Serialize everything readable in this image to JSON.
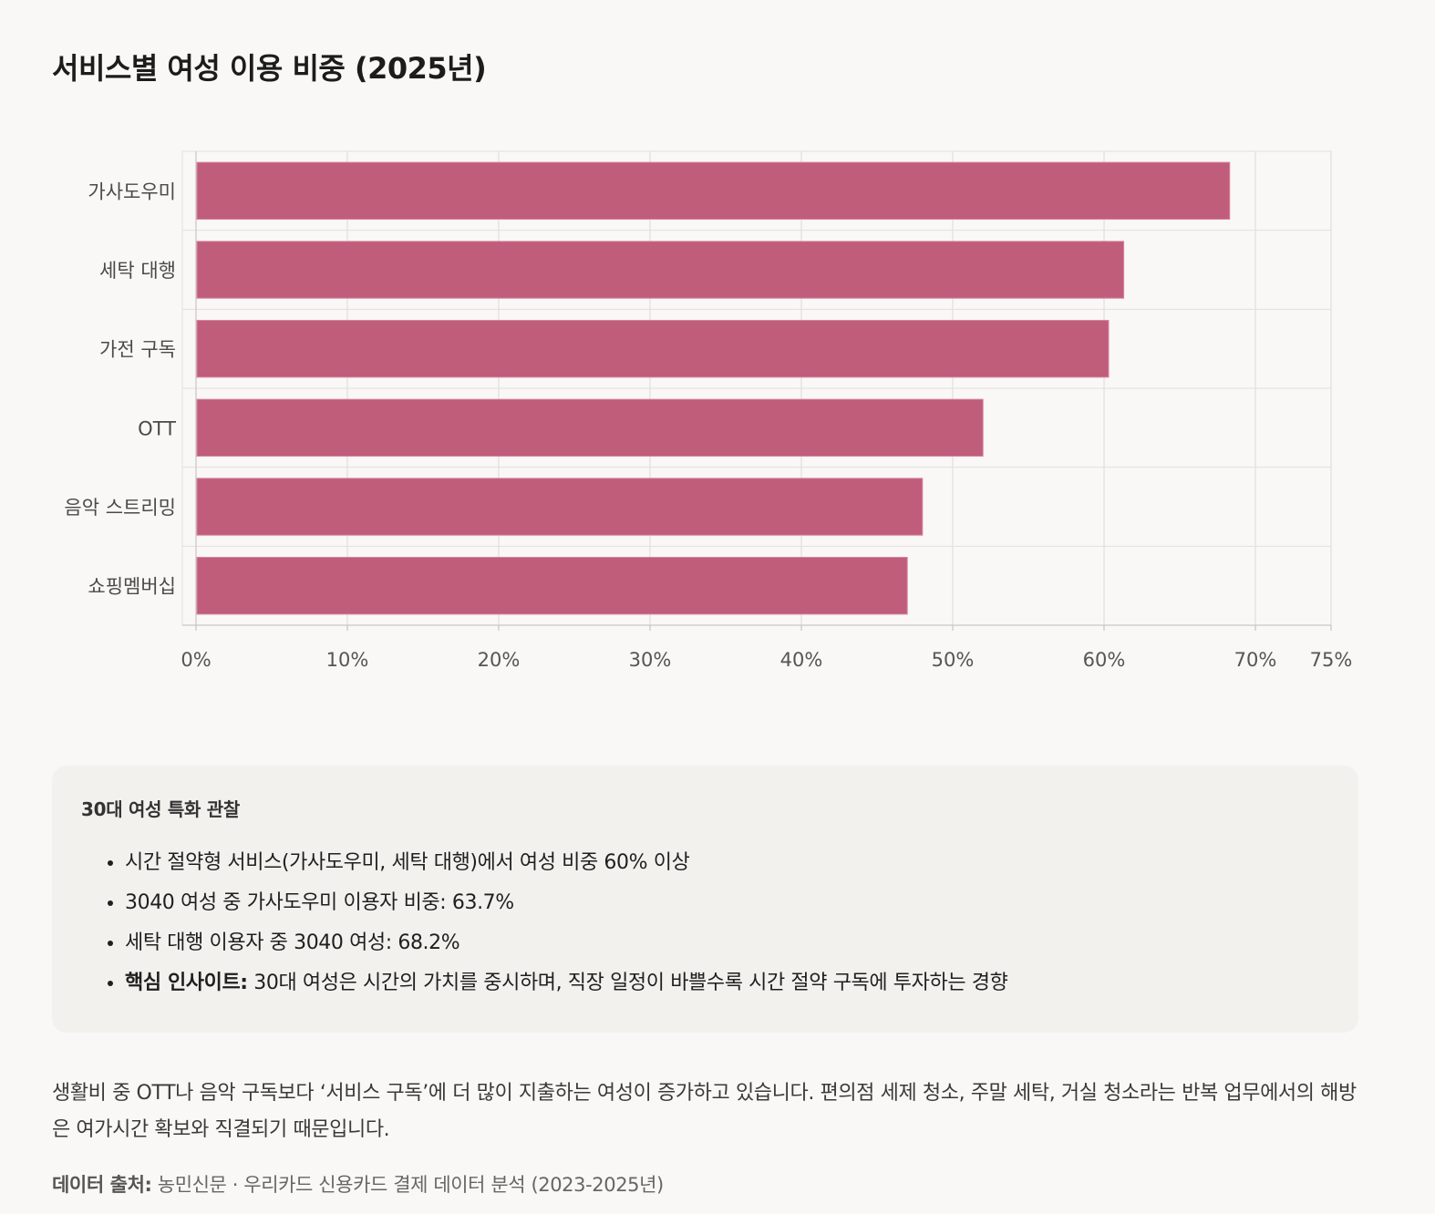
{
  "title": "서비스별 여성 이용 비중 (2025년)",
  "chart_data": {
    "type": "bar",
    "orientation": "horizontal",
    "categories": [
      "가사도우미",
      "세탁 대행",
      "가전 구독",
      "OTT",
      "음악 스트리밍",
      "쇼핑멤버십"
    ],
    "values": [
      68.3,
      61.3,
      60.3,
      52.0,
      48.0,
      47.0
    ],
    "xlim": [
      0,
      75
    ],
    "xticks": [
      "0%",
      "10%",
      "20%",
      "30%",
      "40%",
      "50%",
      "60%",
      "70%",
      "75%"
    ],
    "xtick_values": [
      0,
      10,
      20,
      30,
      40,
      50,
      60,
      70,
      75
    ],
    "grid": true,
    "bar_color": "#c05d7b"
  },
  "insight": {
    "title": "30대 여성 특화 관찰",
    "items": [
      {
        "strong": "",
        "text": "시간 절약형 서비스(가사도우미, 세탁 대행)에서 여성 비중 60% 이상"
      },
      {
        "strong": "",
        "text": "3040 여성 중 가사도우미 이용자 비중: 63.7%"
      },
      {
        "strong": "",
        "text": "세탁 대행 이용자 중 3040 여성: 68.2%"
      },
      {
        "strong": "핵심 인사이트:",
        "text": " 30대 여성은 시간의 가치를 중시하며, 직장 일정이 바쁠수록 시간 절약 구독에 투자하는 경향"
      }
    ]
  },
  "paragraph": "생활비 중 OTT나 음악 구독보다 ‘서비스 구독’에 더 많이 지출하는 여성이 증가하고 있습니다. 편의점 세제 청소, 주말 세탁, 거실 청소라는 반복 업무에서의 해방은 여가시간 확보와 직결되기 때문입니다.",
  "source": {
    "label": "데이터 출처:",
    "text": " 농민신문 · 우리카드 신용카드 결제 데이터 분석 (2023-2025년)"
  }
}
